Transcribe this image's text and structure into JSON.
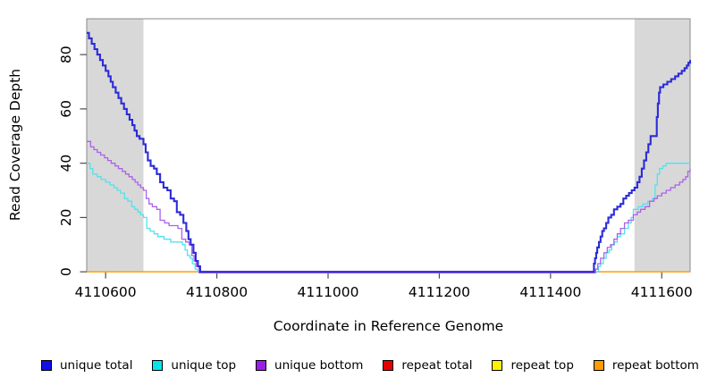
{
  "figure": {
    "background": "#ffffff"
  },
  "chart_data": {
    "type": "line",
    "step": true,
    "title": "",
    "xlabel": "Coordinate in Reference Genome",
    "ylabel": "Read Coverage Depth",
    "xlim": [
      4110566,
      4111651
    ],
    "ylim": [
      0,
      93.2
    ],
    "x_ticks": [
      4110600,
      4110800,
      4111000,
      4111200,
      4111400,
      4111600
    ],
    "y_ticks": [
      0,
      20,
      40,
      60,
      80
    ],
    "grid": false,
    "legend_position": "bottom",
    "box_color": "#8a8a8a",
    "tick_color": "#4d4d4d",
    "shaded_regions": [
      {
        "x0": 4110566,
        "x1": 4110668,
        "color": "#d8d8d8"
      },
      {
        "x0": 4111551,
        "x1": 4111651,
        "color": "#d8d8d8"
      }
    ],
    "series": [
      {
        "name": "unique total",
        "color": "#2b2bd8",
        "swatch": "#0f0fe8",
        "width": 2.1,
        "z": 6,
        "points": [
          [
            4110566,
            88
          ],
          [
            4110570,
            86
          ],
          [
            4110575,
            84
          ],
          [
            4110580,
            82
          ],
          [
            4110585,
            80
          ],
          [
            4110590,
            78
          ],
          [
            4110595,
            76
          ],
          [
            4110600,
            74
          ],
          [
            4110605,
            72
          ],
          [
            4110609,
            70
          ],
          [
            4110613,
            68
          ],
          [
            4110618,
            66
          ],
          [
            4110623,
            64
          ],
          [
            4110628,
            62
          ],
          [
            4110633,
            60
          ],
          [
            4110638,
            58
          ],
          [
            4110643,
            56
          ],
          [
            4110648,
            54
          ],
          [
            4110652,
            52
          ],
          [
            4110656,
            50
          ],
          [
            4110661,
            49
          ],
          [
            4110668,
            47
          ],
          [
            4110672,
            44
          ],
          [
            4110676,
            41
          ],
          [
            4110681,
            39
          ],
          [
            4110687,
            38
          ],
          [
            4110692,
            36
          ],
          [
            4110698,
            33
          ],
          [
            4110704,
            31
          ],
          [
            4110711,
            30
          ],
          [
            4110717,
            27
          ],
          [
            4110723,
            26
          ],
          [
            4110728,
            22
          ],
          [
            4110734,
            21
          ],
          [
            4110740,
            18
          ],
          [
            4110745,
            15
          ],
          [
            4110749,
            12
          ],
          [
            4110753,
            10
          ],
          [
            4110758,
            7
          ],
          [
            4110762,
            4
          ],
          [
            4110766,
            2
          ],
          [
            4110770,
            0
          ],
          [
            4111476,
            0
          ],
          [
            4111478,
            3
          ],
          [
            4111480,
            5
          ],
          [
            4111482,
            7
          ],
          [
            4111484,
            9
          ],
          [
            4111487,
            11
          ],
          [
            4111490,
            13
          ],
          [
            4111493,
            15
          ],
          [
            4111496,
            16
          ],
          [
            4111500,
            18
          ],
          [
            4111504,
            20
          ],
          [
            4111509,
            21
          ],
          [
            4111514,
            23
          ],
          [
            4111520,
            24
          ],
          [
            4111526,
            25
          ],
          [
            4111531,
            27
          ],
          [
            4111536,
            28
          ],
          [
            4111541,
            29
          ],
          [
            4111546,
            30
          ],
          [
            4111551,
            31
          ],
          [
            4111556,
            33
          ],
          [
            4111560,
            35
          ],
          [
            4111564,
            38
          ],
          [
            4111568,
            41
          ],
          [
            4111572,
            44
          ],
          [
            4111576,
            47
          ],
          [
            4111580,
            50
          ],
          [
            4111588,
            50
          ],
          [
            4111591,
            57
          ],
          [
            4111593,
            62
          ],
          [
            4111595,
            66
          ],
          [
            4111597,
            68
          ],
          [
            4111603,
            69
          ],
          [
            4111610,
            70
          ],
          [
            4111617,
            71
          ],
          [
            4111624,
            72
          ],
          [
            4111630,
            73
          ],
          [
            4111636,
            74
          ],
          [
            4111641,
            75
          ],
          [
            4111645,
            76
          ],
          [
            4111648,
            77
          ],
          [
            4111651,
            78
          ]
        ]
      },
      {
        "name": "unique top",
        "color": "#52e2f0",
        "swatch": "#00e6ef",
        "width": 1.3,
        "z": 4,
        "points": [
          [
            4110566,
            40
          ],
          [
            4110572,
            38
          ],
          [
            4110577,
            36
          ],
          [
            4110585,
            35
          ],
          [
            4110592,
            34
          ],
          [
            4110600,
            33
          ],
          [
            4110608,
            32
          ],
          [
            4110615,
            31
          ],
          [
            4110621,
            30
          ],
          [
            4110627,
            29
          ],
          [
            4110634,
            27
          ],
          [
            4110640,
            26
          ],
          [
            4110647,
            24
          ],
          [
            4110652,
            23
          ],
          [
            4110658,
            22
          ],
          [
            4110663,
            21
          ],
          [
            4110668,
            20
          ],
          [
            4110674,
            16
          ],
          [
            4110680,
            15
          ],
          [
            4110687,
            14
          ],
          [
            4110694,
            13
          ],
          [
            4110705,
            12
          ],
          [
            4110717,
            11
          ],
          [
            4110730,
            11
          ],
          [
            4110738,
            10
          ],
          [
            4110743,
            8
          ],
          [
            4110747,
            6
          ],
          [
            4110752,
            5
          ],
          [
            4110756,
            3
          ],
          [
            4110761,
            1
          ],
          [
            4110765,
            0
          ],
          [
            4111483,
            0
          ],
          [
            4111486,
            2
          ],
          [
            4111490,
            3
          ],
          [
            4111495,
            5
          ],
          [
            4111500,
            7
          ],
          [
            4111505,
            8
          ],
          [
            4111510,
            10
          ],
          [
            4111515,
            11
          ],
          [
            4111520,
            13
          ],
          [
            4111526,
            14
          ],
          [
            4111533,
            16
          ],
          [
            4111540,
            18
          ],
          [
            4111545,
            20
          ],
          [
            4111549,
            23
          ],
          [
            4111558,
            24
          ],
          [
            4111566,
            25
          ],
          [
            4111575,
            26
          ],
          [
            4111583,
            27
          ],
          [
            4111588,
            32
          ],
          [
            4111592,
            36
          ],
          [
            4111596,
            38
          ],
          [
            4111602,
            39
          ],
          [
            4111608,
            40
          ],
          [
            4111651,
            40
          ]
        ]
      },
      {
        "name": "unique bottom",
        "color": "#ab62e8",
        "swatch": "#9b1fe8",
        "width": 1.3,
        "z": 5,
        "points": [
          [
            4110566,
            48
          ],
          [
            4110573,
            46
          ],
          [
            4110579,
            45
          ],
          [
            4110585,
            44
          ],
          [
            4110591,
            43
          ],
          [
            4110598,
            42
          ],
          [
            4110604,
            41
          ],
          [
            4110610,
            40
          ],
          [
            4110617,
            39
          ],
          [
            4110623,
            38
          ],
          [
            4110630,
            37
          ],
          [
            4110636,
            36
          ],
          [
            4110642,
            35
          ],
          [
            4110648,
            34
          ],
          [
            4110653,
            33
          ],
          [
            4110658,
            32
          ],
          [
            4110663,
            31
          ],
          [
            4110668,
            30
          ],
          [
            4110673,
            27
          ],
          [
            4110678,
            25
          ],
          [
            4110684,
            24
          ],
          [
            4110692,
            23
          ],
          [
            4110698,
            19
          ],
          [
            4110706,
            18
          ],
          [
            4110714,
            17
          ],
          [
            4110722,
            17
          ],
          [
            4110730,
            16
          ],
          [
            4110737,
            12
          ],
          [
            4110744,
            11
          ],
          [
            4110750,
            10
          ],
          [
            4110755,
            6
          ],
          [
            4110759,
            4
          ],
          [
            4110763,
            2
          ],
          [
            4110768,
            0
          ],
          [
            4111478,
            0
          ],
          [
            4111481,
            1
          ],
          [
            4111485,
            3
          ],
          [
            4111490,
            5
          ],
          [
            4111496,
            7
          ],
          [
            4111502,
            9
          ],
          [
            4111508,
            10
          ],
          [
            4111514,
            12
          ],
          [
            4111520,
            14
          ],
          [
            4111526,
            16
          ],
          [
            4111533,
            18
          ],
          [
            4111540,
            19
          ],
          [
            4111549,
            21
          ],
          [
            4111556,
            22
          ],
          [
            4111562,
            23
          ],
          [
            4111570,
            24
          ],
          [
            4111578,
            26
          ],
          [
            4111586,
            27
          ],
          [
            4111592,
            28
          ],
          [
            4111600,
            29
          ],
          [
            4111608,
            30
          ],
          [
            4111616,
            31
          ],
          [
            4111624,
            32
          ],
          [
            4111632,
            33
          ],
          [
            4111638,
            34
          ],
          [
            4111643,
            35
          ],
          [
            4111647,
            37
          ],
          [
            4111651,
            38
          ]
        ]
      },
      {
        "name": "repeat total",
        "color": "#e00000",
        "swatch": "#e60000",
        "width": 1.3,
        "z": 1,
        "points": [
          [
            4110566,
            0
          ],
          [
            4111651,
            0
          ]
        ]
      },
      {
        "name": "repeat top",
        "color": "#ffee00",
        "swatch": "#fff000",
        "width": 1.3,
        "z": 2,
        "points": [
          [
            4110566,
            0
          ],
          [
            4111651,
            0
          ]
        ]
      },
      {
        "name": "repeat bottom",
        "color": "#ffa319",
        "swatch": "#ff9d00",
        "width": 1.6,
        "z": 3,
        "points": [
          [
            4110566,
            0
          ],
          [
            4111651,
            0
          ]
        ]
      }
    ]
  }
}
